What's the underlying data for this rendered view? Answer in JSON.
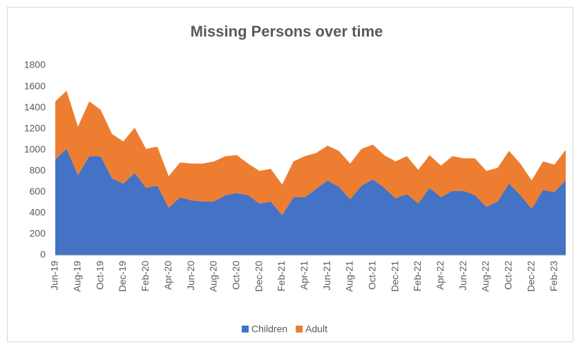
{
  "chart_data": {
    "type": "stacked_area",
    "title": "Missing Persons over time",
    "categories": [
      "Jun-19",
      null,
      "Aug-19",
      null,
      "Oct-19",
      null,
      "Dec-19",
      null,
      "Feb-20",
      null,
      "Apr-20",
      null,
      "Jun-20",
      null,
      "Aug-20",
      null,
      "Oct-20",
      null,
      "Dec-20",
      null,
      "Feb-21",
      null,
      "Apr-21",
      null,
      "Jun-21",
      null,
      "Aug-21",
      null,
      "Oct-21",
      null,
      "Dec-21",
      null,
      "Feb-22",
      null,
      "Apr-22",
      null,
      "Jun-22",
      null,
      "Aug-22",
      null,
      "Oct-22",
      null,
      "Dec-22",
      null,
      "Feb-23",
      null
    ],
    "series": [
      {
        "name": "Children",
        "color": "#4472c4",
        "values": [
          910,
          1010,
          760,
          940,
          940,
          730,
          680,
          780,
          640,
          660,
          450,
          550,
          520,
          510,
          510,
          570,
          590,
          570,
          490,
          510,
          380,
          550,
          550,
          630,
          710,
          650,
          530,
          660,
          720,
          640,
          540,
          580,
          490,
          640,
          550,
          610,
          610,
          570,
          460,
          510,
          680,
          570,
          440,
          620,
          600,
          710
        ]
      },
      {
        "name": "Adult",
        "color": "#ed7d31",
        "values": [
          550,
          550,
          460,
          520,
          440,
          420,
          400,
          430,
          370,
          370,
          300,
          330,
          350,
          360,
          380,
          370,
          360,
          300,
          310,
          310,
          290,
          340,
          390,
          340,
          330,
          340,
          340,
          350,
          330,
          310,
          350,
          360,
          320,
          310,
          300,
          330,
          310,
          350,
          340,
          320,
          310,
          300,
          270,
          270,
          260,
          290
        ]
      }
    ],
    "ylim": [
      0,
      1800
    ],
    "yticks": [
      0,
      200,
      400,
      600,
      800,
      1000,
      1200,
      1400,
      1600,
      1800
    ],
    "legend": "bottom"
  }
}
